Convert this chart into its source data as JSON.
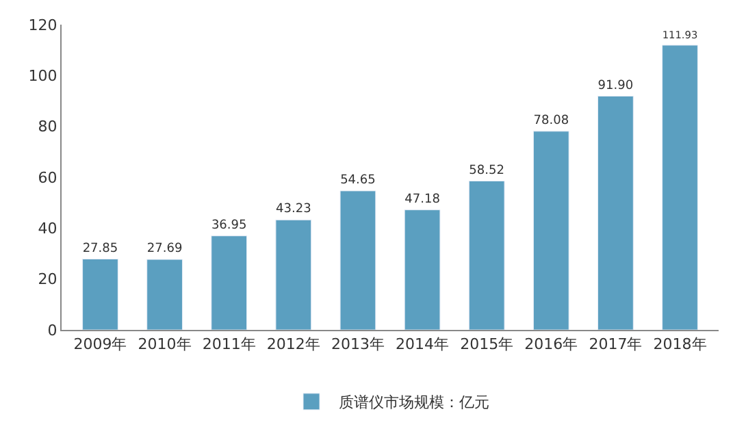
{
  "chart_data": {
    "type": "bar",
    "categories": [
      "2009年",
      "2010年",
      "2011年",
      "2012年",
      "2013年",
      "2014年",
      "2015年",
      "2016年",
      "2017年",
      "2018年"
    ],
    "series": [
      {
        "name": "质谱仪市场规模：亿元",
        "color": "#5b9fc0",
        "values": [
          27.85,
          27.69,
          36.95,
          43.23,
          54.65,
          47.18,
          58.52,
          78.08,
          91.9,
          111.93
        ]
      }
    ],
    "value_labels": [
      "27.85",
      "27.69",
      "36.95",
      "43.23",
      "54.65",
      "47.18",
      "58.52",
      "78.08",
      "91.90",
      "111.93"
    ],
    "ylim": [
      0,
      120
    ],
    "yticks": [
      0,
      20,
      40,
      60,
      80,
      100,
      120
    ],
    "grid": false,
    "legend": "bottom"
  }
}
